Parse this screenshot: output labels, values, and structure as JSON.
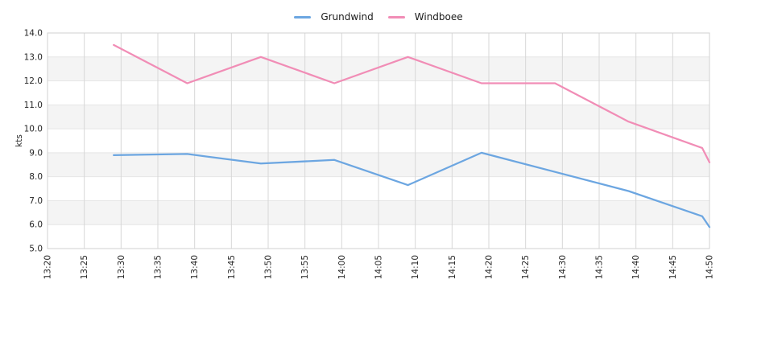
{
  "chart_data": {
    "type": "line",
    "title": "",
    "ylabel": "kts",
    "xlabel": "",
    "ylim": [
      5.0,
      14.0
    ],
    "y_ticks": [
      "5.0",
      "6.0",
      "7.0",
      "8.0",
      "9.0",
      "10.0",
      "11.0",
      "12.0",
      "13.0",
      "14.0"
    ],
    "x_ticks": [
      "13:20",
      "13:25",
      "13:30",
      "13:35",
      "13:40",
      "13:45",
      "13:50",
      "13:55",
      "14:00",
      "14:05",
      "14:10",
      "14:15",
      "14:20",
      "14:25",
      "14:30",
      "14:35",
      "14:40",
      "14:45",
      "14:50"
    ],
    "x_range": [
      "13:20",
      "14:50"
    ],
    "grid": true,
    "legend_position": "top-center",
    "series": [
      {
        "name": "Grundwind",
        "color": "#6CA6E1",
        "x": [
          "13:29",
          "13:39",
          "13:49",
          "13:59",
          "14:09",
          "14:19",
          "14:29",
          "14:39",
          "14:49",
          "14:50"
        ],
        "values": [
          8.9,
          8.95,
          8.55,
          8.7,
          7.65,
          9.0,
          8.2,
          7.4,
          6.35,
          5.9
        ]
      },
      {
        "name": "Windboee",
        "color": "#F18DB6",
        "x": [
          "13:29",
          "13:39",
          "13:49",
          "13:59",
          "14:09",
          "14:19",
          "14:29",
          "14:39",
          "14:49",
          "14:50"
        ],
        "values": [
          13.5,
          11.9,
          13.0,
          11.9,
          13.0,
          11.9,
          11.9,
          10.3,
          9.2,
          8.6
        ]
      }
    ],
    "colors": {
      "band_gray": "#f4f4f4",
      "band_white": "#ffffff",
      "grid_vertical": "#d7d7d7",
      "grid_horizontal": "#e6e6e6",
      "plot_border": "#d0d0d0",
      "tick_text": "#262626"
    }
  }
}
